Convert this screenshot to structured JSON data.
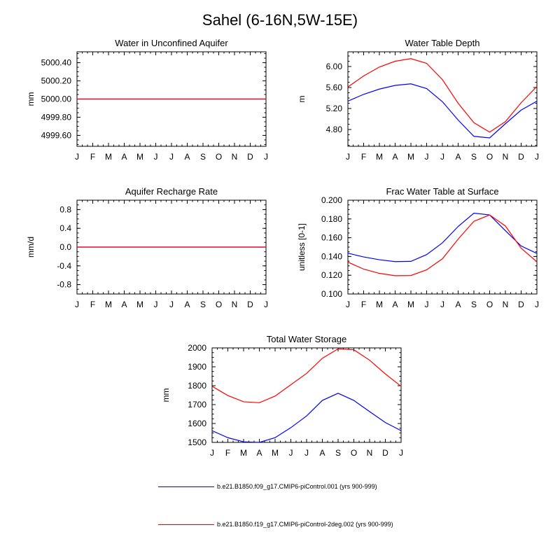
{
  "page_title": "Sahel (6-16N,5W-15E)",
  "colors": {
    "series1": "#0000ff",
    "series2": "#ff0000",
    "axis": "#000000"
  },
  "legend": [
    {
      "label": "b.e21.B1850.f09_g17.CMIP6-piControl.001 (yrs 900-999)",
      "color": "#0000ff"
    },
    {
      "label": "b.e21.B1850.f19_g17.CMIP6-piControl-2deg.002 (yrs 900-999)",
      "color": "#ff0000"
    }
  ],
  "chart_data": [
    {
      "id": "aquifer",
      "type": "line",
      "title": "Water in Unconfined Aquifer",
      "ylabel": "mm",
      "xlabel": "",
      "categories": [
        "J",
        "F",
        "M",
        "A",
        "M",
        "J",
        "J",
        "A",
        "S",
        "O",
        "N",
        "D",
        "J"
      ],
      "ylim": [
        4999.48,
        5000.52
      ],
      "yticks": [
        4999.6,
        4999.8,
        5000.0,
        5000.2,
        5000.4
      ],
      "ytick_labels": [
        "4999.60",
        "4999.80",
        "5000.00",
        "5000.20",
        "5000.40"
      ],
      "series": [
        {
          "name": "b.e21.B1850.f09_g17.CMIP6-piControl.001 (yrs 900-999)",
          "color": "#0000ff",
          "values": [
            5000,
            5000,
            5000,
            5000,
            5000,
            5000,
            5000,
            5000,
            5000,
            5000,
            5000,
            5000,
            5000
          ]
        },
        {
          "name": "b.e21.B1850.f19_g17.CMIP6-piControl-2deg.002 (yrs 900-999)",
          "color": "#ff0000",
          "values": [
            5000,
            5000,
            5000,
            5000,
            5000,
            5000,
            5000,
            5000,
            5000,
            5000,
            5000,
            5000,
            5000
          ]
        }
      ]
    },
    {
      "id": "wtdepth",
      "type": "line",
      "title": "Water Table Depth",
      "ylabel": "m",
      "xlabel": "",
      "categories": [
        "J",
        "F",
        "M",
        "A",
        "M",
        "J",
        "J",
        "A",
        "S",
        "O",
        "N",
        "D",
        "J"
      ],
      "ylim": [
        4.48,
        6.28
      ],
      "yticks": [
        4.8,
        5.2,
        5.6,
        6.0
      ],
      "ytick_labels": [
        "4.80",
        "5.20",
        "5.60",
        "6.00"
      ],
      "series": [
        {
          "name": "b.e21.B1850.f09_g17.CMIP6-piControl.001 (yrs 900-999)",
          "color": "#0000ff",
          "values": [
            5.34,
            5.47,
            5.57,
            5.64,
            5.67,
            5.58,
            5.33,
            4.98,
            4.67,
            4.64,
            4.91,
            5.17,
            5.34
          ]
        },
        {
          "name": "b.e21.B1850.f19_g17.CMIP6-piControl-2deg.002 (yrs 900-999)",
          "color": "#ff0000",
          "values": [
            5.61,
            5.82,
            5.99,
            6.1,
            6.15,
            6.06,
            5.75,
            5.3,
            4.93,
            4.75,
            4.95,
            5.31,
            5.62
          ]
        }
      ]
    },
    {
      "id": "recharge",
      "type": "line",
      "title": "Aquifer Recharge Rate",
      "ylabel": "mm/d",
      "xlabel": "",
      "categories": [
        "J",
        "F",
        "M",
        "A",
        "M",
        "J",
        "J",
        "A",
        "S",
        "O",
        "N",
        "D",
        "J"
      ],
      "ylim": [
        -1.0,
        1.0
      ],
      "yticks": [
        -0.8,
        -0.4,
        0.0,
        0.4,
        0.8
      ],
      "ytick_labels": [
        "-0.8",
        "-0.4",
        "0.0",
        "0.4",
        "0.8"
      ],
      "series": [
        {
          "name": "b.e21.B1850.f09_g17.CMIP6-piControl.001 (yrs 900-999)",
          "color": "#0000ff",
          "values": [
            0,
            0,
            0,
            0,
            0,
            0,
            0,
            0,
            0,
            0,
            0,
            0,
            0
          ]
        },
        {
          "name": "b.e21.B1850.f19_g17.CMIP6-piControl-2deg.002 (yrs 900-999)",
          "color": "#ff0000",
          "values": [
            0,
            0,
            0,
            0,
            0,
            0,
            0,
            0,
            0,
            0,
            0,
            0,
            0
          ]
        }
      ]
    },
    {
      "id": "fracwt",
      "type": "line",
      "title": "Frac Water Table at Surface",
      "ylabel": "unitless [0-1]",
      "xlabel": "",
      "categories": [
        "J",
        "F",
        "M",
        "A",
        "M",
        "J",
        "J",
        "A",
        "S",
        "O",
        "N",
        "D",
        "J"
      ],
      "ylim": [
        0.1,
        0.2
      ],
      "yticks": [
        0.1,
        0.12,
        0.14,
        0.16,
        0.18,
        0.2
      ],
      "ytick_labels": [
        "0.100",
        "0.120",
        "0.140",
        "0.160",
        "0.180",
        "0.200"
      ],
      "series": [
        {
          "name": "b.e21.B1850.f09_g17.CMIP6-piControl.001 (yrs 900-999)",
          "color": "#0000ff",
          "values": [
            0.1435,
            0.1395,
            0.1365,
            0.1345,
            0.1348,
            0.142,
            0.1545,
            0.172,
            0.1862,
            0.1843,
            0.1675,
            0.1512,
            0.1432
          ]
        },
        {
          "name": "b.e21.B1850.f19_g17.CMIP6-piControl-2deg.002 (yrs 900-999)",
          "color": "#ff0000",
          "values": [
            0.134,
            0.1265,
            0.122,
            0.1195,
            0.1197,
            0.1258,
            0.1375,
            0.1585,
            0.1775,
            0.1843,
            0.1725,
            0.1488,
            0.1343
          ]
        }
      ]
    },
    {
      "id": "tws",
      "type": "line",
      "title": "Total Water Storage",
      "ylabel": "mm",
      "xlabel": "",
      "categories": [
        "J",
        "F",
        "M",
        "A",
        "M",
        "J",
        "J",
        "A",
        "S",
        "O",
        "N",
        "D",
        "J"
      ],
      "ylim": [
        1500,
        2000
      ],
      "yticks": [
        1500,
        1600,
        1700,
        1800,
        1900,
        2000
      ],
      "ytick_labels": [
        "1500",
        "1600",
        "1700",
        "1800",
        "1900",
        "2000"
      ],
      "series": [
        {
          "name": "b.e21.B1850.f09_g17.CMIP6-piControl.001 (yrs 900-999)",
          "color": "#0000ff",
          "values": [
            1562,
            1525,
            1503,
            1500,
            1525,
            1578,
            1640,
            1722,
            1760,
            1722,
            1663,
            1605,
            1562
          ]
        },
        {
          "name": "b.e21.B1850.f19_g17.CMIP6-piControl-2deg.002 (yrs 900-999)",
          "color": "#ff0000",
          "values": [
            1797,
            1748,
            1715,
            1710,
            1745,
            1805,
            1865,
            1945,
            1995,
            1990,
            1935,
            1862,
            1797
          ]
        }
      ]
    }
  ]
}
